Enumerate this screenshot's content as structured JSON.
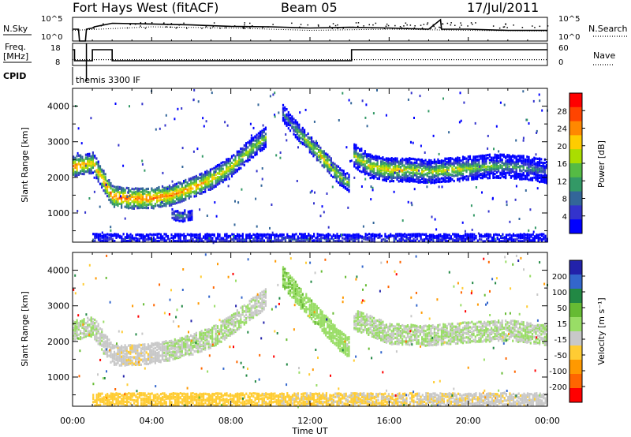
{
  "header": {
    "station": "Fort Hays West (fitACF)",
    "beam": "Beam 05",
    "date": "17/Jul/2011"
  },
  "top_panel": {
    "left_label": "N.Sky",
    "right_label": "N.Search",
    "left_ticks": [
      "10^5",
      "10^0"
    ],
    "right_ticks": [
      "10^5",
      "10^0"
    ],
    "legend_line": "dotted"
  },
  "freq_panel": {
    "left_label_1": "Freq.",
    "left_label_2": "[MHz]",
    "right_label": "Nave",
    "left_ticks": [
      "18",
      "8"
    ],
    "right_ticks": [
      "60",
      "0"
    ],
    "legend_line": "dotted"
  },
  "cpid": {
    "label": "CPID",
    "value": "themis 3300 IF"
  },
  "time_axis": {
    "label": "Time UT",
    "ticks": [
      "00:00",
      "04:00",
      "08:00",
      "12:00",
      "16:00",
      "20:00",
      "00:00"
    ]
  },
  "colorbars": {
    "power": {
      "label": "Power [dB]",
      "ticks": [
        "28",
        "24",
        "20",
        "16",
        "12",
        "8",
        "4"
      ],
      "colors": [
        "#ff0000",
        "#ff4400",
        "#ff8800",
        "#ffcc00",
        "#aadd00",
        "#55bb44",
        "#339966",
        "#336699",
        "#3333cc",
        "#0000ff"
      ]
    },
    "velocity": {
      "label": "Velocity [m s⁻¹]",
      "ticks": [
        "200",
        "100",
        "50",
        "15",
        "-15",
        "-50",
        "-100",
        "-200"
      ],
      "colors": [
        "#2222aa",
        "#3366cc",
        "#228844",
        "#66bb33",
        "#99dd66",
        "#c8c8c8",
        "#ffcc33",
        "#ff9900",
        "#ff6600",
        "#ff0000"
      ]
    }
  },
  "chart_data": [
    {
      "type": "heatmap",
      "title": "Power",
      "xlabel": "Time UT",
      "ylabel": "Slant Range [km]",
      "xlim": [
        0,
        24
      ],
      "ylim": [
        180,
        4500
      ],
      "yticks": [
        1000,
        2000,
        3000,
        4000
      ],
      "x_tick_labels": [
        "00:00",
        "04:00",
        "08:00",
        "12:00",
        "16:00",
        "20:00",
        "00:00"
      ],
      "colorbar": "Power [dB]",
      "echo_bands": [
        {
          "t": [
            0.0,
            1.0,
            2.0,
            3.0,
            4.0,
            5.0,
            6.0,
            7.0,
            8.0,
            9.0,
            9.8
          ],
          "range": [
            2300,
            2400,
            1450,
            1400,
            1400,
            1500,
            1700,
            1950,
            2300,
            2800,
            3150
          ],
          "width": 280,
          "power": [
            28,
            24,
            28,
            28,
            28,
            26,
            26,
            24,
            22,
            20,
            18
          ]
        },
        {
          "t": [
            10.6,
            11.0,
            11.5,
            12.0,
            12.5,
            13.0,
            13.5,
            14.0
          ],
          "range": [
            3800,
            3500,
            3200,
            2900,
            2600,
            2300,
            2000,
            1800
          ],
          "width": 240,
          "power": [
            12,
            14,
            18,
            20,
            24,
            22,
            20,
            16
          ]
        },
        {
          "t": [
            14.2,
            15.0,
            16.0,
            17.0,
            18.0,
            19.0,
            20.0,
            21.0,
            22.0,
            23.0,
            24.0
          ],
          "range": [
            2600,
            2300,
            2200,
            2200,
            2150,
            2200,
            2250,
            2300,
            2300,
            2250,
            2150
          ],
          "width": 300,
          "power": [
            20,
            22,
            24,
            22,
            20,
            22,
            20,
            18,
            16,
            14,
            12
          ]
        },
        {
          "t": [
            5.0,
            5.5,
            6.0
          ],
          "range": [
            950,
            900,
            950
          ],
          "width": 150,
          "power": [
            12,
            14,
            10
          ]
        },
        {
          "t": [
            1.0,
            6.0,
            12.0,
            18.0,
            24.0
          ],
          "range": [
            250,
            250,
            250,
            250,
            250
          ],
          "width": 120,
          "power": [
            8,
            8,
            10,
            8,
            6
          ]
        }
      ]
    },
    {
      "type": "heatmap",
      "title": "Velocity",
      "xlabel": "Time UT",
      "ylabel": "Slant Range [km]",
      "xlim": [
        0,
        24
      ],
      "ylim": [
        180,
        4500
      ],
      "yticks": [
        1000,
        2000,
        3000,
        4000
      ],
      "x_tick_labels": [
        "00:00",
        "04:00",
        "08:00",
        "12:00",
        "16:00",
        "20:00",
        "00:00"
      ],
      "colorbar": "Velocity [m s⁻¹]",
      "echo_bands": [
        {
          "t": [
            0.0,
            1.0,
            2.0,
            3.0,
            4.0,
            5.0,
            6.0,
            7.0,
            8.0,
            9.0,
            9.8
          ],
          "range": [
            2300,
            2400,
            1600,
            1600,
            1650,
            1750,
            1900,
            2100,
            2450,
            2900,
            3200
          ],
          "velocity": [
            0,
            0,
            -20,
            -30,
            -20,
            0,
            0,
            0,
            0,
            0,
            -10
          ]
        },
        {
          "t": [
            10.6,
            11.5,
            12.5,
            13.5,
            14.0
          ],
          "range": [
            3800,
            3200,
            2600,
            2000,
            1800
          ],
          "velocity": [
            30,
            25,
            20,
            15,
            10
          ]
        },
        {
          "t": [
            14.2,
            16.0,
            18.0,
            20.0,
            22.0,
            24.0
          ],
          "range": [
            2600,
            2200,
            2150,
            2250,
            2300,
            2150
          ],
          "velocity": [
            0,
            0,
            0,
            0,
            0,
            0
          ]
        },
        {
          "t": [
            1.0,
            6.0,
            12.0,
            18.0,
            24.0
          ],
          "range": [
            250,
            250,
            250,
            250,
            250
          ],
          "velocity": [
            -60,
            -50,
            -40,
            -30,
            -20
          ]
        }
      ]
    },
    {
      "type": "line",
      "title": "N.Sky / N.Search",
      "xlim": [
        0,
        24
      ],
      "series": [
        {
          "name": "N.Sky",
          "x": [
            0.0,
            0.3,
            0.35,
            0.65,
            0.7,
            1.0,
            1.1,
            2.0,
            4.0,
            6.0,
            8.0,
            10.0,
            12.0,
            14.0,
            16.0,
            18.0,
            18.6,
            18.65,
            20.0,
            22.0,
            24.0
          ],
          "y": [
            0.5,
            0.5,
            0.0,
            0.0,
            0.5,
            0.55,
            0.6,
            0.75,
            0.72,
            0.68,
            0.62,
            0.6,
            0.55,
            0.58,
            0.55,
            0.5,
            0.9,
            0.5,
            0.5,
            0.45,
            0.45
          ]
        },
        {
          "name": "N.Search",
          "x": [
            0.0,
            4.0,
            8.0,
            12.0,
            16.0,
            20.0,
            24.0
          ],
          "y": [
            0.45,
            0.6,
            0.55,
            0.45,
            0.5,
            0.45,
            0.42
          ]
        }
      ]
    },
    {
      "type": "line",
      "title": "Freq / Nave",
      "xlim": [
        0,
        24
      ],
      "series": [
        {
          "name": "Freq.",
          "x": [
            0.0,
            0.1,
            0.1,
            1.0,
            1.0,
            2.0,
            2.0,
            14.1,
            14.1,
            24.0
          ],
          "y": [
            1,
            1,
            0,
            0,
            1,
            1,
            0,
            0,
            1,
            1
          ]
        },
        {
          "name": "Nave",
          "x": [
            0.0,
            24.0
          ],
          "y": [
            0.1,
            0.1
          ]
        }
      ]
    }
  ]
}
